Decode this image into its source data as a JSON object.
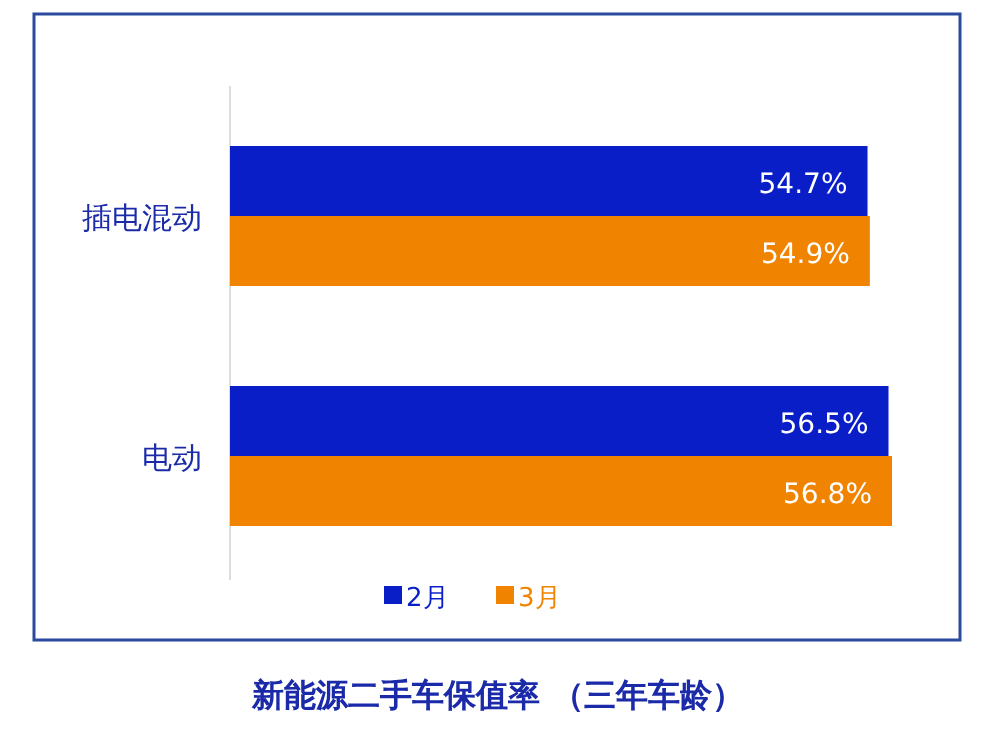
{
  "chart_data": {
    "type": "bar",
    "orientation": "horizontal",
    "title": "新能源二手车保值率 （三年车龄）",
    "categories": [
      "插电混动",
      "电动"
    ],
    "series": [
      {
        "name": "2月",
        "color": "#0a1ec8",
        "values": [
          54.7,
          56.5
        ],
        "value_labels": [
          "54.7%",
          "56.5%"
        ]
      },
      {
        "name": "3月",
        "color": "#f08400",
        "values": [
          54.9,
          56.8
        ],
        "value_labels": [
          "54.9%",
          "56.8%"
        ]
      }
    ],
    "legend": "bottom",
    "tick_labels": "y"
  }
}
